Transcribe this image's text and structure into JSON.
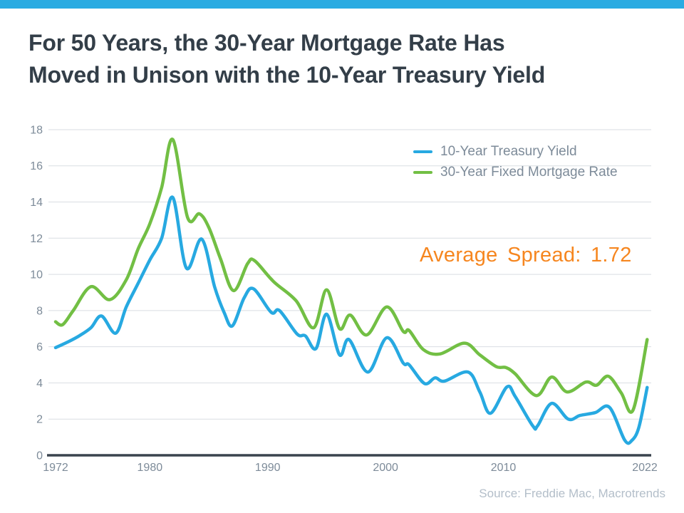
{
  "page": {
    "title_line1": "For 50 Years, the 30-Year Mortgage Rate Has",
    "title_line2": "Moved in Unison with the 10-Year Treasury Yield",
    "source": "Source: Freddie Mac, Macrotrends"
  },
  "colors": {
    "accent_bar": "#29ABE2",
    "treasury_line": "#27A9E1",
    "mortgage_line": "#72BF44",
    "annotation_orange": "#F6861F",
    "title_text": "#333E48",
    "axis_text": "#7D8B99",
    "grid_line": "#D9DDE2",
    "axis_line": "#3A444E",
    "source_text": "#B3BEC9"
  },
  "chart_data": {
    "type": "line",
    "title": "",
    "xlabel": "",
    "ylabel": "",
    "grid": true,
    "legend_position": "top-right",
    "x_axis": {
      "ticks": [
        1972,
        1980,
        1990,
        2000,
        2010,
        2022
      ],
      "range": [
        1972,
        2022.7
      ]
    },
    "y_axis": {
      "ticks": [
        0,
        2,
        4,
        6,
        8,
        10,
        12,
        14,
        16,
        18
      ],
      "range": [
        0,
        18
      ]
    },
    "annotation": {
      "text": "Average Spread: 1.72",
      "value": 1.72
    },
    "series": [
      {
        "name": "10-Year Treasury Yield",
        "color": "#27A9E1",
        "points": [
          [
            1972.0,
            5.95
          ],
          [
            1973.0,
            6.25
          ],
          [
            1974.0,
            6.6
          ],
          [
            1975.0,
            7.05
          ],
          [
            1975.9,
            7.7
          ],
          [
            1977.1,
            6.75
          ],
          [
            1978.0,
            8.2
          ],
          [
            1979.0,
            9.5
          ],
          [
            1980.0,
            10.8
          ],
          [
            1981.0,
            12.0
          ],
          [
            1981.95,
            14.25
          ],
          [
            1983.1,
            10.35
          ],
          [
            1984.4,
            11.95
          ],
          [
            1985.5,
            9.3
          ],
          [
            1986.3,
            7.9
          ],
          [
            1987.0,
            7.15
          ],
          [
            1988.0,
            8.7
          ],
          [
            1988.8,
            9.2
          ],
          [
            1990.3,
            7.9
          ],
          [
            1991.0,
            8.0
          ],
          [
            1992.5,
            6.7
          ],
          [
            1993.2,
            6.6
          ],
          [
            1994.1,
            5.9
          ],
          [
            1995.0,
            7.8
          ],
          [
            1996.1,
            5.55
          ],
          [
            1996.9,
            6.4
          ],
          [
            1998.5,
            4.6
          ],
          [
            2000.1,
            6.5
          ],
          [
            2001.5,
            5.1
          ],
          [
            2002.0,
            5.0
          ],
          [
            2003.3,
            3.97
          ],
          [
            2004.2,
            4.28
          ],
          [
            2005.0,
            4.1
          ],
          [
            2007.0,
            4.6
          ],
          [
            2008.0,
            3.5
          ],
          [
            2008.9,
            2.32
          ],
          [
            2010.3,
            3.78
          ],
          [
            2011.0,
            3.25
          ],
          [
            2012.5,
            1.62
          ],
          [
            2012.9,
            1.63
          ],
          [
            2014.1,
            2.87
          ],
          [
            2015.5,
            2.0
          ],
          [
            2016.5,
            2.2
          ],
          [
            2017.8,
            2.36
          ],
          [
            2019.0,
            2.65
          ],
          [
            2020.3,
            0.83
          ],
          [
            2020.9,
            0.82
          ],
          [
            2021.5,
            1.55
          ],
          [
            2022.2,
            3.75
          ]
        ]
      },
      {
        "name": "30-Year Fixed Mortgage Rate",
        "color": "#72BF44",
        "points": [
          [
            1972.0,
            7.38
          ],
          [
            1972.6,
            7.22
          ],
          [
            1973.5,
            8.0
          ],
          [
            1975.0,
            9.32
          ],
          [
            1976.6,
            8.6
          ],
          [
            1978.0,
            9.7
          ],
          [
            1979.0,
            11.4
          ],
          [
            1980.0,
            12.8
          ],
          [
            1981.0,
            14.8
          ],
          [
            1981.95,
            17.45
          ],
          [
            1983.2,
            13.15
          ],
          [
            1984.2,
            13.35
          ],
          [
            1985.0,
            12.6
          ],
          [
            1986.0,
            10.85
          ],
          [
            1987.1,
            9.1
          ],
          [
            1988.3,
            10.6
          ],
          [
            1988.9,
            10.75
          ],
          [
            1990.5,
            9.6
          ],
          [
            1992.4,
            8.55
          ],
          [
            1993.9,
            7.05
          ],
          [
            1995.0,
            9.15
          ],
          [
            1996.1,
            7.0
          ],
          [
            1997.0,
            7.75
          ],
          [
            1998.4,
            6.65
          ],
          [
            2000.1,
            8.2
          ],
          [
            2001.5,
            6.85
          ],
          [
            2002.0,
            6.9
          ],
          [
            2003.2,
            5.85
          ],
          [
            2004.6,
            5.6
          ],
          [
            2006.7,
            6.2
          ],
          [
            2008.0,
            5.55
          ],
          [
            2009.4,
            4.9
          ],
          [
            2010.2,
            4.85
          ],
          [
            2011.0,
            4.5
          ],
          [
            2012.8,
            3.3
          ],
          [
            2014.1,
            4.33
          ],
          [
            2015.4,
            3.5
          ],
          [
            2017.0,
            4.05
          ],
          [
            2017.9,
            3.87
          ],
          [
            2018.9,
            4.37
          ],
          [
            2020.0,
            3.45
          ],
          [
            2021.0,
            2.5
          ],
          [
            2022.2,
            6.4
          ]
        ]
      }
    ]
  }
}
